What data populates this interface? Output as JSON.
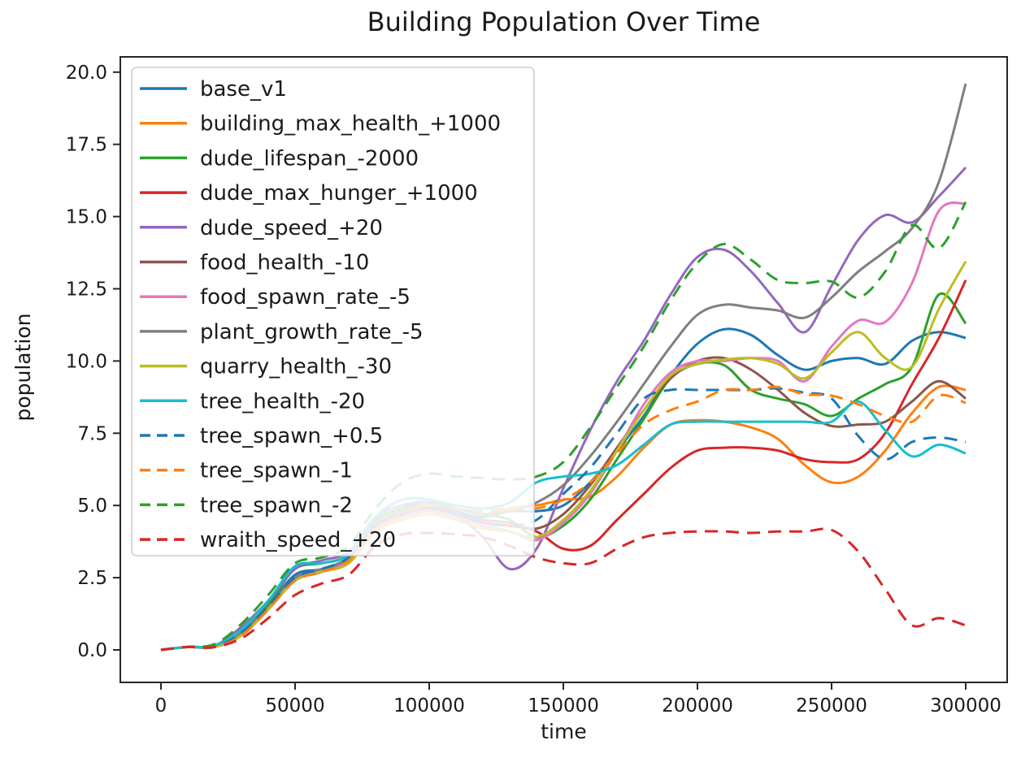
{
  "chart_data": {
    "type": "line",
    "title": "Building Population Over Time",
    "xlabel": "time",
    "ylabel": "population",
    "xlim": [
      -15000,
      315000
    ],
    "ylim": [
      -1.2,
      20.6
    ],
    "grid": false,
    "legend_position": "upper left",
    "x_ticks": [
      0,
      50000,
      100000,
      150000,
      200000,
      250000,
      300000
    ],
    "x_tick_labels": [
      "0",
      "50000",
      "100000",
      "150000",
      "200000",
      "250000",
      "300000"
    ],
    "y_ticks": [
      0.0,
      2.5,
      5.0,
      7.5,
      10.0,
      12.5,
      15.0,
      17.5,
      20.0
    ],
    "y_tick_labels": [
      "0.0",
      "2.5",
      "5.0",
      "7.5",
      "10.0",
      "12.5",
      "15.0",
      "17.5",
      "20.0"
    ],
    "x": [
      0,
      10000,
      20000,
      30000,
      40000,
      50000,
      60000,
      70000,
      80000,
      90000,
      100000,
      110000,
      120000,
      130000,
      140000,
      150000,
      160000,
      170000,
      180000,
      190000,
      200000,
      210000,
      220000,
      230000,
      240000,
      250000,
      260000,
      270000,
      280000,
      290000,
      300000
    ],
    "series": [
      {
        "name": "base_v1",
        "color": "#1f77b4",
        "dash": false,
        "values": [
          0,
          0.1,
          0.1,
          0.6,
          1.5,
          2.6,
          2.8,
          3.2,
          4.4,
          4.8,
          5.0,
          4.8,
          4.6,
          4.8,
          4.8,
          5.0,
          5.8,
          6.9,
          8.1,
          9.5,
          10.6,
          11.1,
          10.9,
          10.2,
          9.7,
          10.0,
          10.1,
          9.9,
          10.7,
          11.0,
          10.8
        ]
      },
      {
        "name": "building_max_health_+1000",
        "color": "#ff7f0e",
        "dash": false,
        "values": [
          0,
          0.1,
          0.1,
          0.5,
          1.4,
          2.4,
          2.7,
          3.1,
          4.2,
          4.7,
          5.0,
          4.9,
          4.7,
          4.9,
          5.0,
          5.2,
          5.3,
          6.0,
          7.0,
          7.8,
          7.95,
          7.9,
          7.7,
          7.3,
          6.4,
          5.8,
          6.0,
          6.9,
          8.2,
          9.1,
          9.0
        ]
      },
      {
        "name": "dude_lifespan_-2000",
        "color": "#2ca02c",
        "dash": false,
        "values": [
          0,
          0.1,
          0.15,
          0.7,
          1.6,
          2.8,
          3.0,
          3.3,
          4.5,
          4.9,
          5.1,
          4.9,
          4.7,
          4.5,
          3.9,
          4.3,
          5.2,
          6.6,
          8.0,
          9.4,
          9.9,
          9.85,
          9.0,
          8.7,
          8.5,
          8.1,
          8.7,
          9.2,
          9.8,
          12.3,
          11.3
        ]
      },
      {
        "name": "dude_max_hunger_+1000",
        "color": "#d62728",
        "dash": false,
        "values": [
          0,
          0.1,
          0.1,
          0.5,
          1.4,
          2.4,
          2.7,
          3.1,
          4.3,
          4.7,
          4.9,
          4.7,
          4.4,
          4.3,
          4.1,
          3.5,
          3.6,
          4.5,
          5.4,
          6.3,
          6.9,
          7.0,
          7.0,
          6.9,
          6.6,
          6.5,
          6.6,
          7.5,
          9.2,
          10.8,
          12.8
        ]
      },
      {
        "name": "dude_speed_+20",
        "color": "#9467bd",
        "dash": false,
        "values": [
          0,
          0.1,
          0.15,
          0.8,
          1.7,
          2.8,
          3.1,
          3.4,
          4.6,
          5.0,
          5.1,
          4.7,
          3.9,
          2.8,
          3.5,
          5.6,
          7.6,
          9.3,
          10.7,
          12.3,
          13.6,
          13.85,
          13.1,
          12.0,
          11.0,
          12.6,
          14.2,
          15.05,
          14.8,
          15.7,
          16.7
        ]
      },
      {
        "name": "food_health_-10",
        "color": "#8c564b",
        "dash": false,
        "values": [
          0,
          0.1,
          0.1,
          0.6,
          1.5,
          2.5,
          2.8,
          3.2,
          4.3,
          4.7,
          4.9,
          4.7,
          4.5,
          4.4,
          4.2,
          4.7,
          5.7,
          7.0,
          8.3,
          9.4,
          10.0,
          10.1,
          9.7,
          9.0,
          8.2,
          7.75,
          7.8,
          7.9,
          8.6,
          9.3,
          8.7
        ]
      },
      {
        "name": "food_spawn_rate_-5",
        "color": "#e377c2",
        "dash": false,
        "values": [
          0,
          0.1,
          0.1,
          0.5,
          1.4,
          2.4,
          2.7,
          3.1,
          4.2,
          4.6,
          4.8,
          4.6,
          4.3,
          4.1,
          3.8,
          4.4,
          5.4,
          6.9,
          8.5,
          9.6,
          10.0,
          10.0,
          10.1,
          10.0,
          9.3,
          10.5,
          11.4,
          11.35,
          12.7,
          15.2,
          15.45
        ]
      },
      {
        "name": "plant_growth_rate_-5",
        "color": "#7f7f7f",
        "dash": false,
        "values": [
          0,
          0.1,
          0.1,
          0.6,
          1.5,
          2.5,
          2.8,
          3.2,
          4.4,
          4.8,
          5.0,
          4.9,
          4.7,
          4.8,
          5.1,
          5.7,
          6.7,
          7.9,
          9.2,
          10.5,
          11.6,
          11.95,
          11.85,
          11.75,
          11.5,
          12.2,
          13.1,
          13.8,
          14.6,
          16.2,
          19.6
        ]
      },
      {
        "name": "quarry_health_-30",
        "color": "#bcbd22",
        "dash": false,
        "values": [
          0,
          0.1,
          0.1,
          0.5,
          1.4,
          2.4,
          2.7,
          3.0,
          4.1,
          4.5,
          4.7,
          4.5,
          4.2,
          4.1,
          3.9,
          4.5,
          5.5,
          6.9,
          8.3,
          9.5,
          9.9,
          10.05,
          10.1,
          9.9,
          9.4,
          10.3,
          11.0,
          10.1,
          9.8,
          11.8,
          13.45
        ]
      },
      {
        "name": "tree_health_-20",
        "color": "#17becf",
        "dash": false,
        "values": [
          0,
          0.1,
          0.15,
          0.7,
          1.7,
          2.9,
          3.0,
          3.3,
          4.6,
          5.2,
          5.2,
          5.0,
          4.9,
          5.1,
          5.8,
          6.0,
          6.1,
          6.4,
          7.1,
          7.8,
          7.9,
          7.9,
          7.9,
          7.9,
          7.9,
          7.9,
          8.6,
          7.6,
          6.7,
          7.1,
          6.8
        ]
      },
      {
        "name": "tree_spawn_+0.5",
        "color": "#1f77b4",
        "dash": true,
        "values": [
          0,
          0.1,
          0.1,
          0.6,
          1.5,
          2.5,
          2.8,
          3.2,
          4.3,
          4.7,
          4.9,
          4.7,
          4.4,
          4.3,
          4.5,
          5.4,
          6.3,
          7.5,
          8.7,
          9.0,
          9.0,
          9.0,
          9.0,
          9.05,
          8.9,
          8.7,
          7.4,
          6.6,
          7.2,
          7.35,
          7.2
        ]
      },
      {
        "name": "tree_spawn_-1",
        "color": "#ff7f0e",
        "dash": true,
        "values": [
          0,
          0.1,
          0.1,
          0.5,
          1.4,
          2.4,
          2.7,
          3.1,
          4.2,
          4.7,
          5.0,
          4.9,
          4.8,
          4.9,
          4.9,
          5.2,
          5.8,
          6.8,
          7.8,
          8.3,
          8.6,
          9.0,
          9.0,
          9.1,
          8.85,
          8.8,
          8.5,
          8.1,
          7.9,
          8.8,
          8.55
        ]
      },
      {
        "name": "tree_spawn_-2",
        "color": "#2ca02c",
        "dash": true,
        "values": [
          0,
          0.1,
          0.2,
          0.9,
          1.9,
          3.0,
          3.2,
          3.6,
          4.9,
          5.8,
          6.1,
          6.0,
          5.95,
          5.9,
          6.0,
          6.5,
          7.7,
          9.1,
          10.5,
          12.1,
          13.4,
          14.05,
          13.5,
          12.8,
          12.7,
          12.75,
          12.2,
          13.1,
          14.7,
          13.9,
          15.5
        ]
      },
      {
        "name": "wraith_speed_+20",
        "color": "#d62728",
        "dash": true,
        "values": [
          0,
          0.1,
          0.1,
          0.4,
          1.1,
          1.9,
          2.3,
          2.6,
          3.6,
          4.0,
          4.05,
          4.0,
          3.9,
          3.6,
          3.2,
          3.0,
          3.0,
          3.5,
          3.9,
          4.05,
          4.1,
          4.1,
          4.05,
          4.1,
          4.1,
          4.15,
          3.4,
          2.1,
          0.85,
          1.1,
          0.85
        ]
      }
    ],
    "colors": {
      "axis": "#262626",
      "text": "#1a1a1a",
      "legend_border": "#cccccc",
      "legend_fill": "#ffffff"
    }
  }
}
